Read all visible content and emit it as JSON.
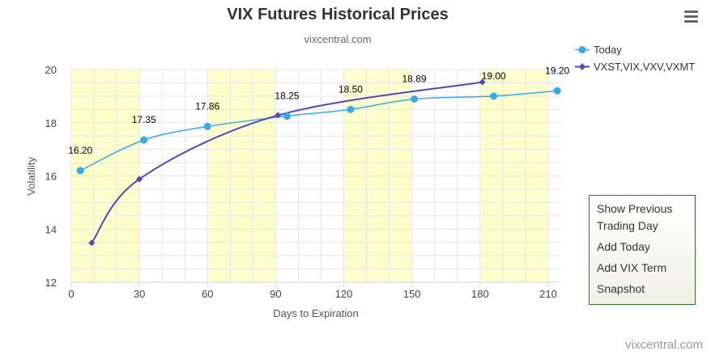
{
  "chart_data": {
    "type": "line",
    "title": "VIX Futures Historical Prices",
    "subtitle": "vixcentral.com",
    "xlabel": "Days to Expiration",
    "ylabel": "Volatility",
    "xlim": [
      0,
      215
    ],
    "ylim": [
      12,
      20
    ],
    "x_ticks": [
      "0",
      "30",
      "60",
      "90",
      "120",
      "150",
      "180",
      "210"
    ],
    "y_ticks": [
      "12",
      "14",
      "16",
      "18",
      "20"
    ],
    "grid": true,
    "legend_position": "top-right",
    "alternating_bands_color": "#ffffcc",
    "series": [
      {
        "name": "Today",
        "color": "#33aaee",
        "marker": "circle",
        "x": [
          4,
          32,
          60,
          95,
          123,
          151,
          186,
          214
        ],
        "y": [
          16.2,
          17.35,
          17.86,
          18.25,
          18.5,
          18.89,
          19.0,
          19.2
        ],
        "labels": [
          "16.20",
          "17.35",
          "17.86",
          "18.25",
          "18.50",
          "18.89",
          "19.00",
          "19.20"
        ]
      },
      {
        "name": "VXST,VIX,VXV,VXMT",
        "color": "#5544bb",
        "marker": "diamond",
        "x": [
          9,
          30,
          91,
          181
        ],
        "y": [
          13.48,
          15.88,
          18.28,
          19.53
        ]
      }
    ]
  },
  "buttons": {
    "show_previous": "Show Previous Trading Day",
    "add_today": "Add Today",
    "add_vix_term": "Add VIX Term",
    "snapshot": "Snapshot"
  },
  "credit": "vixcentral.com"
}
